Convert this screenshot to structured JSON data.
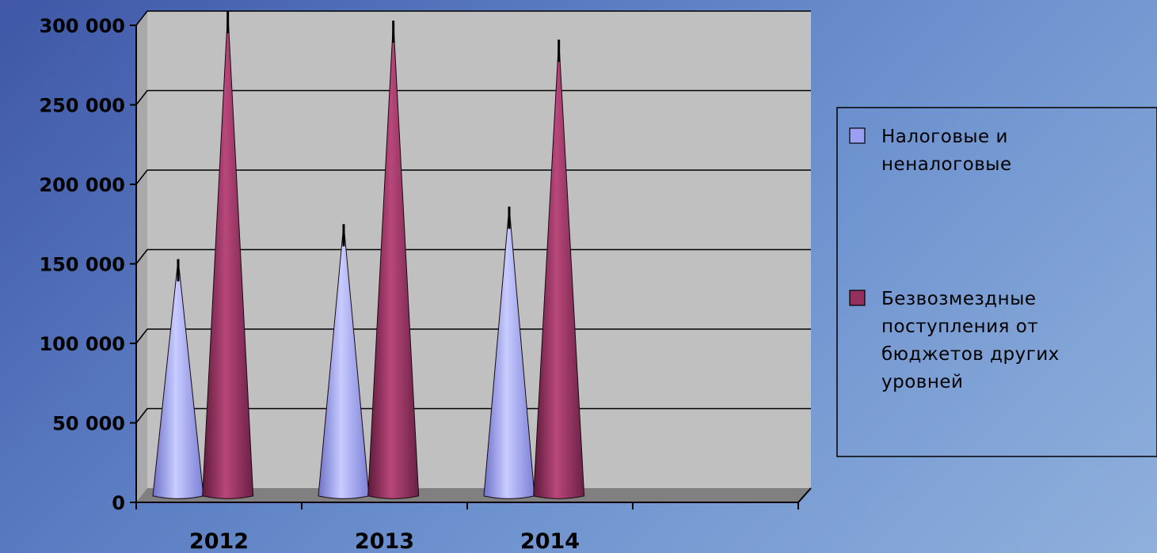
{
  "chart_data": {
    "type": "bar",
    "style": "3d-cone",
    "categories": [
      "2012",
      "2013",
      "2014",
      ""
    ],
    "series": [
      {
        "name": "Налоговые и неналоговые",
        "color": "#9a9ff2",
        "values": [
          144000,
          166000,
          177000,
          null
        ]
      },
      {
        "name": "Безвозмездные поступления от бюджетов других уровней",
        "color": "#93305e",
        "values": [
          300000,
          294000,
          282000,
          null
        ]
      }
    ],
    "yticks": [
      0,
      50000,
      100000,
      150000,
      200000,
      250000,
      300000
    ],
    "ytick_labels": [
      "0",
      "50 000",
      "100 000",
      "150 000",
      "200 000",
      "250 000",
      "300 000"
    ],
    "ylim": [
      0,
      300000
    ],
    "grid": true,
    "legend": {
      "position": "right",
      "entries": [
        [
          "Налоговые и",
          "неналоговые"
        ],
        [
          "Безвозмездные",
          "поступления от",
          "бюджетов других",
          "уровней"
        ]
      ]
    },
    "plot_background": "#c0c0c0",
    "floor_color": "#808080"
  }
}
